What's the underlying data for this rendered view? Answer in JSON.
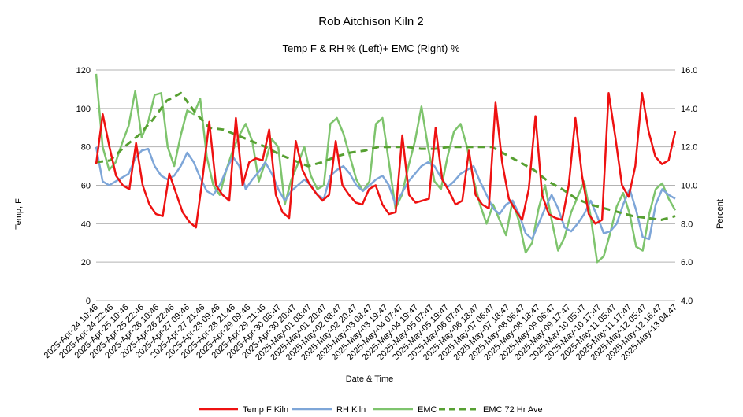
{
  "chart_data": {
    "type": "line",
    "title": "Rob Aitchison Kiln 2",
    "subtitle": "Temp F & RH % (Left)+ EMC (Right) %",
    "xlabel": "Date & Time",
    "ylabel_left": "Temp, F",
    "ylabel_right": "Percent",
    "ylim_left": [
      0,
      120
    ],
    "ylim_right": [
      4.0,
      16.0
    ],
    "yticks_left": [
      "0",
      "20",
      "40",
      "60",
      "80",
      "100",
      "120"
    ],
    "yticks_right": [
      "4.0",
      "6.0",
      "8.0",
      "10.0",
      "12.0",
      "14.0",
      "16.0"
    ],
    "grid": "horizontal",
    "legend_position": "bottom",
    "x_tick_labels": [
      "2025-Apr-24 10:46",
      "2025-Apr-24 22:46",
      "2025-Apr-25 10:46",
      "2025-Apr-25 22:46",
      "2025-Apr-26 10:46",
      "2025-Apr-26 22:46",
      "2025-Apr-27 09:46",
      "2025-Apr-27 21:46",
      "2025-Apr-28 09:46",
      "2025-Apr-28 21:46",
      "2025-Apr-29 09:46",
      "2025-Apr-29 21:46",
      "2025-Apr-30 08:47",
      "2025-Apr-30 20:47",
      "2025-May-01 08:47",
      "2025-May-01 20:47",
      "2025-May-02 08:47",
      "2025-May-02 20:47",
      "2025-May-03 08:47",
      "2025-May-03 19:47",
      "2025-May-04 07:47",
      "2025-May-04 19:47",
      "2025-May-05 07:47",
      "2025-May-05 19:47",
      "2025-May-06 07:47",
      "2025-May-06 18:47",
      "2025-May-07 06:47",
      "2025-May-07 18:47",
      "2025-May-08 06:47",
      "2025-May-08 18:47",
      "2025-May-09 06:47",
      "2025-May-09 17:47",
      "2025-May-10 05:47",
      "2025-May-10 17:47",
      "2025-May-11 05:47",
      "2025-May-11 17:47",
      "2025-May-12 05:47",
      "2025-May-12 16:47",
      "2025-May-13 04:47"
    ],
    "x_points": 62,
    "series": [
      {
        "name": "Temp F Kiln",
        "axis": "left",
        "color": "#ee1111",
        "dash": "solid",
        "values": [
          71,
          97,
          80,
          65,
          60,
          58,
          82,
          60,
          50,
          45,
          44,
          66,
          56,
          46,
          41,
          38,
          64,
          93,
          60,
          55,
          52,
          95,
          60,
          72,
          74,
          73,
          89,
          55,
          46,
          43,
          83,
          68,
          61,
          56,
          52,
          55,
          83,
          60,
          55,
          51,
          50,
          58,
          60,
          50,
          45,
          46,
          86,
          55,
          51,
          52,
          53,
          90,
          63,
          57,
          50,
          52,
          78,
          55,
          50,
          48,
          103,
          72,
          53,
          47,
          42,
          58,
          96,
          55,
          45,
          43,
          42,
          60,
          95,
          65,
          45,
          40,
          42,
          108,
          85,
          60,
          54,
          70,
          108,
          88,
          75,
          71,
          73,
          88
        ]
      },
      {
        "name": "RH Kiln",
        "axis": "left",
        "color": "#7ea6d8",
        "dash": "solid",
        "values": [
          80,
          62,
          60,
          62,
          64,
          66,
          74,
          78,
          79,
          70,
          65,
          63,
          65,
          70,
          77,
          72,
          64,
          57,
          55,
          60,
          68,
          75,
          70,
          58,
          63,
          67,
          72,
          66,
          58,
          52,
          57,
          60,
          63,
          60,
          55,
          53,
          65,
          68,
          70,
          66,
          60,
          57,
          60,
          63,
          65,
          60,
          50,
          56,
          62,
          66,
          70,
          72,
          70,
          64,
          59,
          62,
          66,
          68,
          70,
          62,
          55,
          48,
          45,
          50,
          52,
          45,
          35,
          32,
          40,
          48,
          55,
          48,
          38,
          36,
          40,
          45,
          52,
          44,
          35,
          36,
          40,
          50,
          58,
          47,
          33,
          32,
          50,
          58,
          55,
          53
        ]
      },
      {
        "name": "EMC",
        "axis": "right",
        "color": "#7ec46d",
        "dash": "solid",
        "values": [
          15.8,
          12.0,
          10.8,
          11.2,
          12.2,
          13.1,
          14.9,
          12.5,
          13.3,
          14.7,
          14.8,
          12.0,
          11.0,
          12.6,
          13.9,
          13.7,
          14.5,
          11.5,
          10.0,
          9.5,
          10.8,
          11.8,
          12.6,
          13.2,
          12.3,
          10.2,
          11.2,
          12.4,
          12.0,
          9.0,
          10.3,
          11.1,
          12.0,
          10.5,
          9.8,
          10.0,
          13.2,
          13.5,
          12.7,
          11.5,
          10.3,
          9.7,
          10.2,
          13.2,
          13.5,
          11.2,
          8.8,
          9.5,
          11.0,
          12.3,
          14.1,
          12.0,
          10.2,
          9.8,
          11.5,
          12.8,
          13.2,
          12.0,
          10.3,
          9.0,
          8.0,
          9.0,
          8.2,
          7.4,
          9.2,
          8.1,
          6.5,
          7.0,
          8.8,
          10.0,
          8.2,
          6.6,
          7.3,
          8.6,
          9.4,
          10.2,
          8.4,
          6.0,
          6.3,
          7.5,
          8.9,
          9.6,
          8.5,
          6.8,
          6.6,
          8.5,
          9.8,
          10.1,
          9.3,
          8.7
        ]
      },
      {
        "name": "EMC 72 Hr Ave",
        "axis": "right",
        "color": "#57a032",
        "dash": "dashed",
        "values": [
          11.2,
          11.3,
          12.0,
          12.6,
          13.4,
          14.4,
          14.8,
          13.8,
          13.0,
          12.9,
          12.6,
          12.3,
          12.0,
          11.6,
          11.3,
          11.0,
          11.2,
          11.5,
          11.7,
          11.8,
          12.0,
          12.0,
          12.0,
          11.9,
          11.9,
          12.0,
          12.0,
          12.0,
          12.0,
          11.6,
          11.2,
          10.8,
          10.2,
          9.8,
          9.3,
          9.0,
          8.8,
          8.6,
          8.4,
          8.3,
          8.2,
          8.4
        ]
      }
    ]
  }
}
